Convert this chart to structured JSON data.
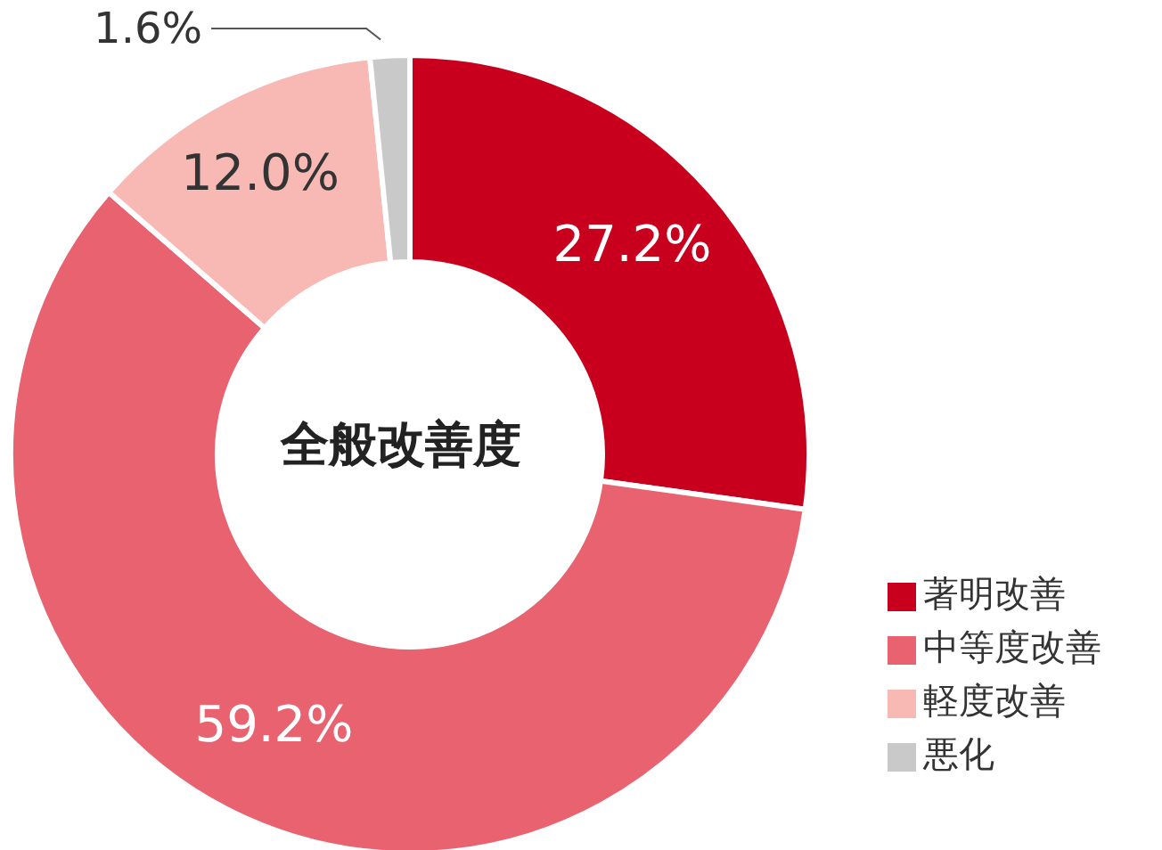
{
  "chart_data": {
    "type": "donut",
    "title": "全般改善度",
    "categories": [
      "著明改善",
      "中等度改善",
      "軽度改善",
      "悪化"
    ],
    "values": [
      27.2,
      59.2,
      12.0,
      1.6
    ],
    "colors": [
      "#c8001e",
      "#e8626f",
      "#f8b9b5",
      "#c9c9c9"
    ],
    "value_labels": [
      "27.2%",
      "59.2%",
      "12.0%",
      "1.6%"
    ],
    "legend": "bottom right"
  }
}
